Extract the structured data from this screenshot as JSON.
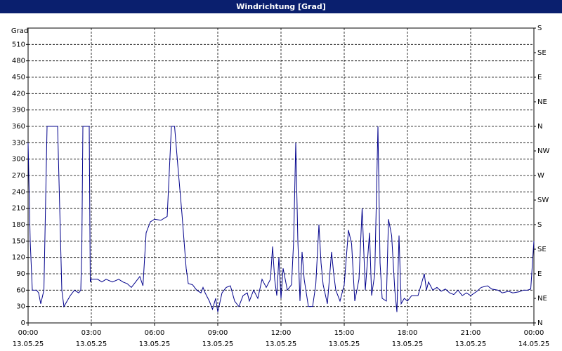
{
  "chart_data": {
    "type": "line",
    "title": "Windrichtung [Grad]",
    "y_label": "Grad",
    "color": "#00008b",
    "grid": true,
    "xlim": [
      0,
      24
    ],
    "xticks": [
      {
        "value": 0,
        "label": "00:00\n13.05.25"
      },
      {
        "value": 3,
        "label": "03:00\n13.05.25"
      },
      {
        "value": 6,
        "label": "06:00\n13.05.25"
      },
      {
        "value": 9,
        "label": "09:00\n13.05.25"
      },
      {
        "value": 12,
        "label": "12:00\n13.05.25"
      },
      {
        "value": 15,
        "label": "15:00\n13.05.25"
      },
      {
        "value": 18,
        "label": "18:00\n13.05.25"
      },
      {
        "value": 21,
        "label": "21:00\n13.05.25"
      },
      {
        "value": 24,
        "label": "00:00\n14.05.25"
      }
    ],
    "ylim": [
      0,
      540
    ],
    "yticks": [
      0,
      30,
      60,
      90,
      120,
      150,
      180,
      210,
      240,
      270,
      300,
      330,
      360,
      390,
      420,
      450,
      480,
      510
    ],
    "y2lim": [
      0,
      540
    ],
    "y2ticks": [
      {
        "value": 0,
        "label": "N"
      },
      {
        "value": 45,
        "label": "NE"
      },
      {
        "value": 90,
        "label": "E"
      },
      {
        "value": 135,
        "label": "SE"
      },
      {
        "value": 180,
        "label": "S"
      },
      {
        "value": 225,
        "label": "SW"
      },
      {
        "value": 270,
        "label": "W"
      },
      {
        "value": 315,
        "label": "NW"
      },
      {
        "value": 360,
        "label": "N"
      },
      {
        "value": 405,
        "label": "NE"
      },
      {
        "value": 450,
        "label": "E"
      },
      {
        "value": 495,
        "label": "SE"
      },
      {
        "value": 540,
        "label": "S"
      }
    ],
    "x": [
      0,
      0.1,
      0.2,
      0.4,
      0.5,
      0.6,
      0.75,
      0.9,
      1.4,
      1.6,
      1.7,
      2.0,
      2.2,
      2.4,
      2.5,
      2.55,
      2.6,
      2.9,
      2.95,
      3.0,
      3.3,
      3.5,
      3.7,
      4.0,
      4.3,
      4.5,
      4.7,
      4.9,
      5.1,
      5.3,
      5.45,
      5.6,
      5.8,
      6.0,
      6.3,
      6.6,
      6.8,
      6.95,
      7.1,
      7.3,
      7.5,
      7.6,
      7.8,
      8.0,
      8.2,
      8.3,
      8.4,
      8.6,
      8.75,
      8.9,
      9.0,
      9.2,
      9.4,
      9.6,
      9.8,
      10.0,
      10.2,
      10.4,
      10.5,
      10.7,
      10.9,
      11.1,
      11.3,
      11.5,
      11.6,
      11.7,
      11.8,
      11.9,
      12.0,
      12.1,
      12.2,
      12.3,
      12.5,
      12.6,
      12.7,
      12.8,
      12.9,
      13.0,
      13.1,
      13.3,
      13.5,
      13.65,
      13.8,
      13.9,
      14.0,
      14.2,
      14.4,
      14.5,
      14.6,
      14.8,
      15.0,
      15.2,
      15.35,
      15.5,
      15.7,
      15.85,
      16.0,
      16.2,
      16.3,
      16.45,
      16.6,
      16.7,
      16.8,
      17.0,
      17.1,
      17.25,
      17.4,
      17.5,
      17.6,
      17.7,
      17.85,
      18.0,
      18.2,
      18.5,
      18.8,
      18.9,
      19.0,
      19.2,
      19.4,
      19.6,
      19.8,
      20.0,
      20.2,
      20.4,
      20.6,
      20.8,
      21.0,
      21.3,
      21.5,
      21.8,
      22.0,
      22.3,
      22.5,
      22.8,
      23.0,
      23.3,
      23.5,
      23.7,
      23.85,
      24.0
    ],
    "values": [
      330,
      150,
      60,
      60,
      55,
      35,
      60,
      360,
      360,
      60,
      30,
      50,
      60,
      55,
      60,
      140,
      360,
      360,
      75,
      80,
      80,
      75,
      80,
      75,
      80,
      75,
      72,
      65,
      75,
      85,
      68,
      165,
      185,
      190,
      188,
      195,
      360,
      360,
      290,
      200,
      100,
      72,
      70,
      60,
      55,
      65,
      55,
      40,
      25,
      45,
      20,
      55,
      65,
      68,
      40,
      30,
      50,
      55,
      40,
      60,
      45,
      80,
      65,
      80,
      140,
      80,
      50,
      120,
      45,
      100,
      80,
      60,
      70,
      150,
      330,
      150,
      40,
      130,
      80,
      30,
      30,
      70,
      180,
      110,
      70,
      35,
      130,
      90,
      60,
      40,
      70,
      170,
      145,
      40,
      80,
      210,
      60,
      165,
      50,
      90,
      360,
      110,
      45,
      40,
      190,
      160,
      60,
      20,
      160,
      35,
      45,
      40,
      50,
      50,
      90,
      60,
      75,
      60,
      65,
      58,
      62,
      55,
      52,
      60,
      50,
      55,
      50,
      58,
      65,
      68,
      62,
      60,
      55,
      58,
      55,
      57,
      60,
      60,
      62,
      150
    ]
  }
}
